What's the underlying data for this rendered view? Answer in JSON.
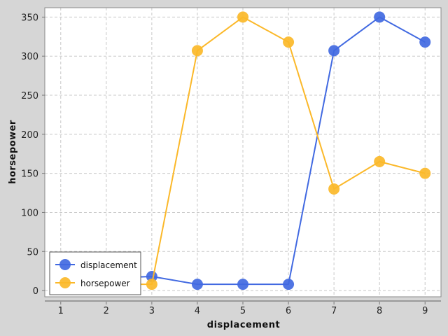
{
  "chart_data": {
    "type": "line",
    "title": "",
    "xlabel": "displacement",
    "ylabel": "horsepower",
    "x": [
      1,
      2,
      3,
      4,
      5,
      6,
      7,
      8,
      9
    ],
    "xlim": [
      0.65,
      9.35
    ],
    "ylim": [
      -8,
      362
    ],
    "x_ticks": [
      1,
      2,
      3,
      4,
      5,
      6,
      7,
      8,
      9
    ],
    "y_ticks": [
      0,
      50,
      100,
      150,
      200,
      250,
      300,
      350
    ],
    "grid": true,
    "legend_position": "bottom-left",
    "series": [
      {
        "name": "displacement",
        "color": "#4169e1",
        "points": [
          [
            2,
            16
          ],
          [
            3,
            18
          ],
          [
            4,
            8
          ],
          [
            5,
            8
          ],
          [
            6,
            8
          ],
          [
            7,
            307
          ],
          [
            8,
            350
          ],
          [
            9,
            318
          ]
        ]
      },
      {
        "name": "horsepower",
        "color": "#fbb829",
        "points": [
          [
            2,
            8
          ],
          [
            3,
            8
          ],
          [
            4,
            307
          ],
          [
            5,
            350
          ],
          [
            6,
            318
          ],
          [
            7,
            130
          ],
          [
            8,
            165
          ],
          [
            9,
            150
          ]
        ]
      }
    ]
  }
}
